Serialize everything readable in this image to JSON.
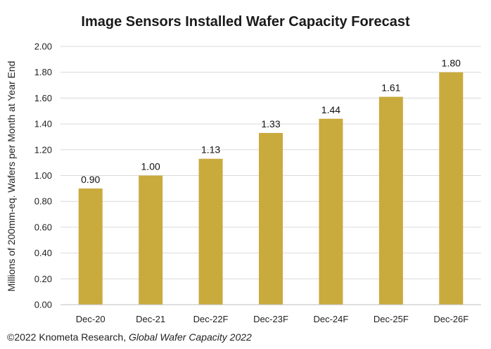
{
  "chart_data": {
    "type": "bar",
    "title": "Image Sensors Installed Wafer Capacity Forecast",
    "ylabel": "Millions of 200mm-eq. Wafers per Month at Year End",
    "xlabel": "",
    "categories": [
      "Dec-20",
      "Dec-21",
      "Dec-22F",
      "Dec-23F",
      "Dec-24F",
      "Dec-25F",
      "Dec-26F"
    ],
    "values": [
      0.9,
      1.0,
      1.13,
      1.33,
      1.44,
      1.61,
      1.8
    ],
    "data_labels": [
      "0.90",
      "1.00",
      "1.13",
      "1.33",
      "1.44",
      "1.61",
      "1.80"
    ],
    "ylim": [
      0,
      2.0
    ],
    "yticks": [
      "0.00",
      "0.20",
      "0.40",
      "0.60",
      "0.80",
      "1.00",
      "1.20",
      "1.40",
      "1.60",
      "1.80",
      "2.00"
    ],
    "grid": true,
    "bar_color": "#c9aa3d",
    "grid_color": "#d9d9d9"
  },
  "source": {
    "prefix": "©2022 Knometa Research, ",
    "italic": "Global Wafer Capacity 2022"
  }
}
